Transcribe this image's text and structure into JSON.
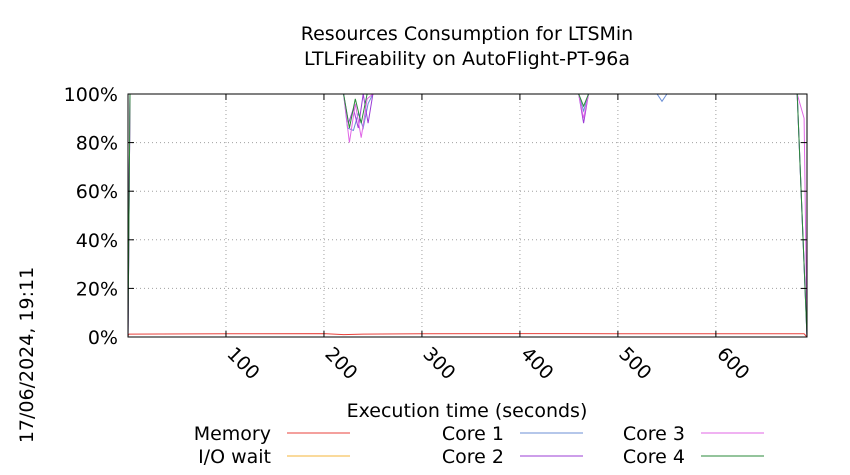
{
  "chart_data": {
    "type": "line",
    "title": "Resources Consumption for LTSMin",
    "subtitle": "LTLFireability on AutoFlight-PT-96a",
    "xlabel": "Execution time (seconds)",
    "ylabel": "",
    "timestamp": "17/06/2024, 19:11",
    "xlim": [
      0,
      693
    ],
    "ylim": [
      0,
      100
    ],
    "x_ticks": [
      {
        "value": 100,
        "label": "100"
      },
      {
        "value": 200,
        "label": "200"
      },
      {
        "value": 300,
        "label": "300"
      },
      {
        "value": 400,
        "label": "400"
      },
      {
        "value": 500,
        "label": "500"
      },
      {
        "value": 600,
        "label": "600"
      }
    ],
    "y_ticks": [
      {
        "value": 0,
        "label": "0%"
      },
      {
        "value": 20,
        "label": "20%"
      },
      {
        "value": 40,
        "label": "40%"
      },
      {
        "value": 60,
        "label": "60%"
      },
      {
        "value": 80,
        "label": "80%"
      },
      {
        "value": 100,
        "label": "100%"
      }
    ],
    "grid": true,
    "legend_position": "bottom",
    "series": [
      {
        "name": "Memory",
        "color": "#e8413b",
        "x": [
          0,
          1,
          100,
          200,
          220,
          240,
          300,
          400,
          450,
          500,
          600,
          690,
          693
        ],
        "y": [
          0.5,
          1.2,
          1.3,
          1.4,
          1.0,
          1.2,
          1.3,
          1.4,
          1.4,
          1.3,
          1.3,
          1.3,
          0
        ]
      },
      {
        "name": "I/O wait",
        "color": "#f5b43a",
        "x": [
          0,
          693
        ],
        "y": [
          0,
          0
        ]
      },
      {
        "name": "Core 1",
        "color": "#6b8fd6",
        "x": [
          0,
          2,
          220,
          224,
          230,
          235,
          240,
          245,
          250,
          460,
          465,
          470,
          540,
          545,
          550,
          683,
          693
        ],
        "y": [
          0,
          100,
          100,
          86,
          85,
          92,
          86,
          96,
          100,
          100,
          93,
          100,
          100,
          97,
          100,
          100,
          0
        ]
      },
      {
        "name": "Core 2",
        "color": "#9b3cd6",
        "x": [
          0,
          2,
          220,
          225,
          230,
          235,
          240,
          245,
          250,
          460,
          465,
          470,
          683,
          693
        ],
        "y": [
          0,
          100,
          100,
          88,
          94,
          86,
          100,
          88,
          100,
          100,
          88,
          100,
          100,
          0
        ]
      },
      {
        "name": "Core 3",
        "color": "#e066e6",
        "x": [
          0,
          2,
          220,
          226,
          232,
          238,
          244,
          250,
          460,
          465,
          470,
          683,
          690,
          693
        ],
        "y": [
          0,
          100,
          100,
          80,
          96,
          82,
          98,
          100,
          100,
          90,
          100,
          100,
          90,
          0
        ]
      },
      {
        "name": "Core 4",
        "color": "#2a8a3a",
        "x": [
          0,
          2,
          220,
          226,
          232,
          238,
          244,
          250,
          460,
          465,
          470,
          683,
          693
        ],
        "y": [
          0,
          100,
          100,
          86,
          98,
          88,
          100,
          100,
          100,
          95,
          100,
          100,
          0
        ]
      }
    ]
  }
}
